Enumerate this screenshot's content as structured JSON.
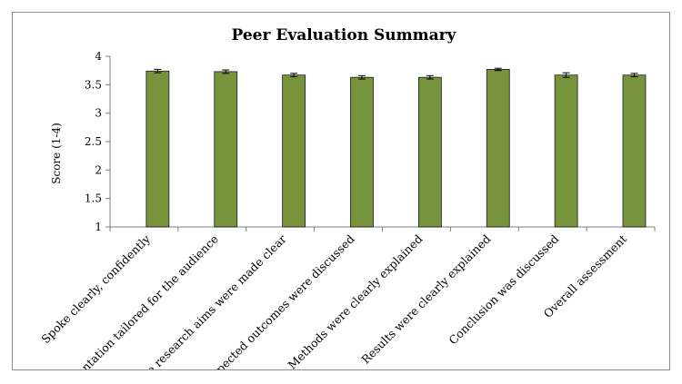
{
  "chart_data": {
    "type": "bar",
    "title": "Peer Evaluation Summary",
    "ylabel": "Score (1-4)",
    "xlabel": "",
    "ylim": [
      1,
      4
    ],
    "yticks": [
      "1",
      "1.5",
      "2",
      "2.5",
      "3",
      "3.5",
      "4"
    ],
    "grid": false,
    "categories": [
      "Spoke clearly, confidently",
      "Presentation tailored for the audience",
      "The research aims were made clear",
      "Expected outcomes were discussed",
      "Methods were clearly explained",
      "Results were clearly explained",
      "Conclusion was discussed",
      "Overall assessment"
    ],
    "values": [
      3.74,
      3.73,
      3.67,
      3.63,
      3.63,
      3.77,
      3.67,
      3.67
    ],
    "errors": [
      0.03,
      0.03,
      0.03,
      0.03,
      0.03,
      0.02,
      0.04,
      0.03
    ],
    "bar_color": "#77933c",
    "bar_edge_color": "#1a1a1a"
  }
}
